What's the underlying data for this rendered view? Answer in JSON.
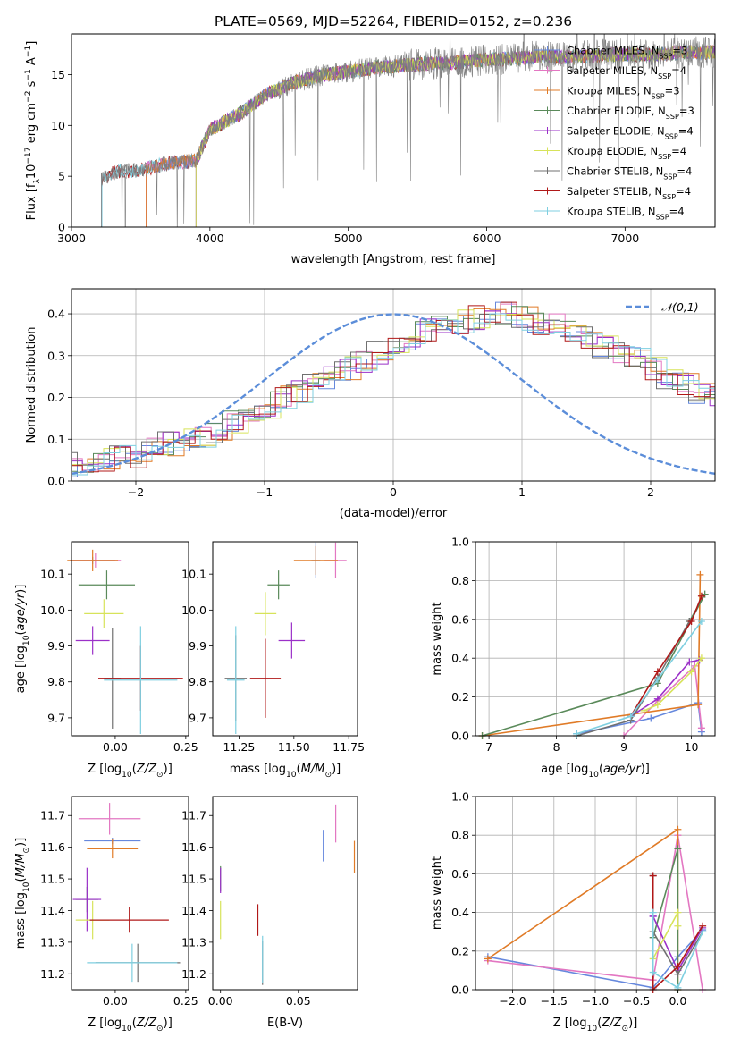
{
  "figure": {
    "title": "PLATE=0569, MJD=52264, FIBERID=0152, z=0.236"
  },
  "colors": {
    "chabrier_miles": "#6688dd",
    "salpeter_miles": "#e377c2",
    "kroupa_miles": "#e07b27",
    "chabrier_elodie": "#5a8a5a",
    "salpeter_elodie": "#9b30c8",
    "kroupa_elodie": "#d7e35a",
    "chabrier_stelib": "#707070",
    "salpeter_stelib": "#b01818",
    "kroupa_stelib": "#7fcfe0",
    "normal": "#5b8dd9"
  },
  "chart_data": [
    {
      "id": "spectrum",
      "type": "line",
      "xlabel": "wavelength [Angstrom, rest frame]",
      "ylabel": "Flux [f",
      "xlim": [
        3000,
        7650
      ],
      "ylim": [
        0,
        19
      ],
      "xticks": [
        3000,
        4000,
        5000,
        6000,
        7000
      ],
      "yticks": [
        0,
        5,
        10,
        15
      ],
      "legend_position": "upper-right",
      "series": [
        {
          "name": "Chabrier MILES, N_SSP=3",
          "start": 3540
        },
        {
          "name": "Salpeter MILES, N_SSP=4",
          "start": 3540
        },
        {
          "name": "Kroupa MILES, N_SSP=3",
          "start": 3540
        },
        {
          "name": "Chabrier ELODIE, N_SSP=3",
          "start": 3900
        },
        {
          "name": "Salpeter ELODIE, N_SSP=4",
          "start": 3900
        },
        {
          "name": "Kroupa ELODIE, N_SSP=4",
          "start": 3900
        },
        {
          "name": "Chabrier STELIB, N_SSP=4",
          "start": 3220
        },
        {
          "name": "Salpeter STELIB, N_SSP=4",
          "start": 3220
        },
        {
          "name": "Kroupa STELIB, N_SSP=4",
          "start": 3220
        }
      ],
      "continuum": {
        "x": [
          3200,
          3300,
          3500,
          3700,
          3900,
          4000,
          4200,
          4400,
          4600,
          4800,
          5000,
          5200,
          5400,
          5600,
          5800,
          6000,
          6200,
          6400,
          6600,
          6800,
          7000,
          7200,
          7400
        ],
        "y": [
          4.5,
          5.4,
          5.6,
          6.3,
          6.5,
          9.6,
          11.0,
          13.0,
          14.2,
          14.9,
          15.3,
          15.7,
          15.9,
          16.1,
          16.2,
          16.5,
          16.6,
          16.8,
          16.7,
          16.9,
          17.0,
          16.9,
          17.2
        ]
      }
    },
    {
      "id": "residuals",
      "type": "histogram",
      "xlabel": "(data-model)/error",
      "ylabel": "Normed distribution",
      "xlim": [
        -2.5,
        2.5
      ],
      "ylim": [
        0,
        0.46
      ],
      "xticks": [
        -2,
        -1,
        0,
        1,
        2
      ],
      "yticks": [
        0.0,
        0.1,
        0.2,
        0.3,
        0.4
      ],
      "legend": [
        "𝒩(0,1)"
      ],
      "bin_width": 0.125,
      "approx_values": [
        0.04,
        0.045,
        0.05,
        0.055,
        0.06,
        0.075,
        0.09,
        0.1,
        0.11,
        0.12,
        0.14,
        0.16,
        0.18,
        0.2,
        0.21,
        0.23,
        0.25,
        0.27,
        0.29,
        0.31,
        0.32,
        0.34,
        0.36,
        0.37,
        0.38,
        0.39,
        0.4,
        0.4,
        0.39,
        0.38,
        0.37,
        0.36,
        0.34,
        0.32,
        0.31,
        0.29,
        0.27,
        0.25,
        0.23,
        0.21,
        0.2,
        0.18,
        0.16,
        0.14,
        0.12,
        0.11,
        0.1,
        0.09,
        0.075,
        0.06,
        0.06,
        0.055,
        0.05,
        0.045,
        0.04,
        0.035,
        0.03,
        0.03
      ]
    },
    {
      "id": "age_vs_Z",
      "type": "scatter",
      "xlabel": "Z [log",
      "ylabel": "age  [log",
      "xlim": [
        -0.155,
        0.26
      ],
      "ylim": [
        9.65,
        10.19
      ],
      "xticks": [
        0.0,
        0.25
      ],
      "yticks": [
        9.7,
        9.8,
        9.9,
        10.0,
        10.1
      ],
      "points": [
        {
          "series": 0,
          "x": -0.08,
          "y": 10.138,
          "xerr": 0.08,
          "yerr": 0.01
        },
        {
          "series": 1,
          "x": -0.07,
          "y": 10.138,
          "xerr": 0.09,
          "yerr": 0.02
        },
        {
          "series": 2,
          "x": -0.08,
          "y": 10.138,
          "xerr": 0.09,
          "yerr": 0.03
        },
        {
          "series": 3,
          "x": -0.03,
          "y": 10.07,
          "xerr": 0.1,
          "yerr": 0.04
        },
        {
          "series": 4,
          "x": -0.08,
          "y": 9.915,
          "xerr": 0.06,
          "yerr": 0.04
        },
        {
          "series": 5,
          "x": -0.04,
          "y": 9.99,
          "xerr": 0.07,
          "yerr": 0.04
        },
        {
          "series": 6,
          "x": -0.01,
          "y": 9.81,
          "xerr": 0.03,
          "yerr": 0.14
        },
        {
          "series": 7,
          "x": 0.09,
          "y": 9.81,
          "xerr": 0.15,
          "yerr": 0.09
        },
        {
          "series": 8,
          "x": 0.09,
          "y": 9.805,
          "xerr": 0.13,
          "yerr": 0.15
        }
      ]
    },
    {
      "id": "age_vs_mass",
      "type": "scatter",
      "xlabel": "mass [log",
      "xlim": [
        11.13,
        11.79
      ],
      "ylim": [
        9.65,
        10.19
      ],
      "xticks": [
        11.25,
        11.5,
        11.75
      ],
      "yticks": [
        9.7,
        9.8,
        9.9,
        10.0,
        10.1
      ],
      "points": [
        {
          "series": 0,
          "x": 11.6,
          "y": 10.138,
          "xerr": 0.02,
          "yerr": 0.05
        },
        {
          "series": 1,
          "x": 11.69,
          "y": 10.138,
          "xerr": 0.05,
          "yerr": 0.05
        },
        {
          "series": 2,
          "x": 11.6,
          "y": 10.138,
          "xerr": 0.1,
          "yerr": 0.04
        },
        {
          "series": 3,
          "x": 11.43,
          "y": 10.07,
          "xerr": 0.05,
          "yerr": 0.04
        },
        {
          "series": 4,
          "x": 11.49,
          "y": 9.915,
          "xerr": 0.06,
          "yerr": 0.05
        },
        {
          "series": 5,
          "x": 11.37,
          "y": 9.99,
          "xerr": 0.05,
          "yerr": 0.06
        },
        {
          "series": 6,
          "x": 11.235,
          "y": 9.81,
          "xerr": 0.05,
          "yerr": 0.12
        },
        {
          "series": 7,
          "x": 11.37,
          "y": 9.81,
          "xerr": 0.07,
          "yerr": 0.11
        },
        {
          "series": 8,
          "x": 11.235,
          "y": 9.805,
          "xerr": 0.04,
          "yerr": 0.15
        }
      ]
    },
    {
      "id": "weight_vs_age",
      "type": "line",
      "xlabel": "age  [log",
      "ylabel": "mass weight",
      "xlim": [
        6.8,
        10.35
      ],
      "ylim": [
        0,
        1.0
      ],
      "xticks": [
        7,
        8,
        9,
        10
      ],
      "yticks": [
        0.0,
        0.2,
        0.4,
        0.6,
        0.8,
        1.0
      ],
      "series": [
        {
          "series": 0,
          "x": [
            8.3,
            9.4,
            10.1,
            10.15
          ],
          "y": [
            0.01,
            0.09,
            0.17,
            0.02
          ]
        },
        {
          "series": 1,
          "x": [
            9.0,
            9.5,
            10.05,
            10.15
          ],
          "y": [
            0.0,
            0.18,
            0.36,
            0.04
          ]
        },
        {
          "series": 2,
          "x": [
            6.9,
            10.1,
            10.13
          ],
          "y": [
            0.0,
            0.16,
            0.83
          ]
        },
        {
          "series": 3,
          "x": [
            6.9,
            9.5,
            10.2,
            9.97
          ],
          "y": [
            0.0,
            0.27,
            0.73,
            0.59
          ]
        },
        {
          "series": 4,
          "x": [
            9.1,
            9.5,
            9.97,
            10.12
          ],
          "y": [
            0.1,
            0.19,
            0.38,
            0.39
          ]
        },
        {
          "series": 5,
          "x": [
            9.3,
            9.5,
            10.0,
            10.15
          ],
          "y": [
            0.13,
            0.16,
            0.33,
            0.4
          ]
        },
        {
          "series": 6,
          "x": [
            8.3,
            9.1,
            9.5,
            9.97
          ],
          "y": [
            0.0,
            0.08,
            0.3,
            0.59
          ]
        },
        {
          "series": 7,
          "x": [
            9.1,
            9.5,
            10.0,
            10.15
          ],
          "y": [
            0.1,
            0.33,
            0.59,
            0.72
          ]
        },
        {
          "series": 8,
          "x": [
            8.3,
            9.1,
            9.5,
            10.15
          ],
          "y": [
            0.01,
            0.1,
            0.29,
            0.59
          ]
        }
      ]
    },
    {
      "id": "mass_vs_Z",
      "type": "scatter",
      "xlabel": "Z [log",
      "ylabel": "mass [log",
      "xlim": [
        -0.155,
        0.26
      ],
      "ylim": [
        11.15,
        11.76
      ],
      "xticks": [
        0.0,
        0.25
      ],
      "yticks": [
        11.2,
        11.3,
        11.4,
        11.5,
        11.6,
        11.7
      ],
      "points": [
        {
          "series": 0,
          "x": -0.01,
          "y": 11.62,
          "xerr": 0.1,
          "yerr": 0.01
        },
        {
          "series": 1,
          "x": -0.02,
          "y": 11.69,
          "xerr": 0.11,
          "yerr": 0.05
        },
        {
          "series": 2,
          "x": -0.01,
          "y": 11.595,
          "xerr": 0.09,
          "yerr": 0.03
        },
        {
          "series": 3,
          "x": -0.1,
          "y": 11.435,
          "xerr": 0.04,
          "yerr": 0.04
        },
        {
          "series": 4,
          "x": -0.1,
          "y": 11.435,
          "xerr": 0.05,
          "yerr": 0.1
        },
        {
          "series": 5,
          "x": -0.08,
          "y": 11.37,
          "xerr": 0.06,
          "yerr": 0.06
        },
        {
          "series": 6,
          "x": 0.08,
          "y": 11.235,
          "xerr": 0.15,
          "yerr": 0.06
        },
        {
          "series": 7,
          "x": 0.05,
          "y": 11.37,
          "xerr": 0.14,
          "yerr": 0.04
        },
        {
          "series": 8,
          "x": 0.06,
          "y": 11.235,
          "xerr": 0.16,
          "yerr": 0.06
        }
      ]
    },
    {
      "id": "mass_vs_ebv",
      "type": "scatter",
      "xlabel": "E(B-V)",
      "xlim": [
        -0.005,
        0.088
      ],
      "ylim": [
        11.15,
        11.76
      ],
      "xticks": [
        0.0,
        0.05
      ],
      "yticks": [
        11.2,
        11.3,
        11.4,
        11.5,
        11.6,
        11.7
      ],
      "points": [
        {
          "series": 0,
          "x": 0.066,
          "y": 11.605,
          "yerr": 0.05
        },
        {
          "series": 1,
          "x": 0.074,
          "y": 11.675,
          "yerr": 0.06
        },
        {
          "series": 2,
          "x": 0.086,
          "y": 11.57,
          "yerr": 0.05
        },
        {
          "series": 3,
          "x": 0.0,
          "y": 11.5,
          "yerr": 0.04
        },
        {
          "series": 4,
          "x": 0.0,
          "y": 11.495,
          "yerr": 0.04
        },
        {
          "series": 5,
          "x": 0.0,
          "y": 11.37,
          "yerr": 0.06
        },
        {
          "series": 6,
          "x": 0.027,
          "y": 11.235,
          "yerr": 0.07
        },
        {
          "series": 7,
          "x": 0.024,
          "y": 11.37,
          "yerr": 0.05
        },
        {
          "series": 8,
          "x": 0.027,
          "y": 11.245,
          "yerr": 0.075
        }
      ]
    },
    {
      "id": "weight_vs_Z",
      "type": "line",
      "xlabel": "Z [log",
      "ylabel": "mass weight",
      "xlim": [
        -2.45,
        0.45
      ],
      "ylim": [
        0,
        1.0
      ],
      "xticks": [
        -2.0,
        -1.5,
        -1.0,
        -0.5,
        0.0
      ],
      "yticks": [
        0.0,
        0.2,
        0.4,
        0.6,
        0.8,
        1.0
      ],
      "series": [
        {
          "series": 0,
          "x": [
            -2.3,
            -0.3,
            0.0,
            0.3
          ],
          "y": [
            0.17,
            0.01,
            0.17,
            0.31
          ]
        },
        {
          "series": 1,
          "x": [
            -2.3,
            -0.3,
            0.0,
            0.3
          ],
          "y": [
            0.15,
            0.05,
            0.8,
            0.0
          ]
        },
        {
          "series": 2,
          "x": [
            -2.3,
            0.0,
            0.0
          ],
          "y": [
            0.16,
            0.83,
            0.0
          ]
        },
        {
          "series": 3,
          "x": [
            -0.3,
            0.0,
            0.0
          ],
          "y": [
            0.27,
            0.73,
            0.0
          ]
        },
        {
          "series": 4,
          "x": [
            -0.3,
            -0.3,
            0.0,
            0.3
          ],
          "y": [
            0.38,
            0.38,
            0.1,
            0.32
          ]
        },
        {
          "series": 5,
          "x": [
            -0.3,
            0.0,
            0.0
          ],
          "y": [
            0.16,
            0.4,
            0.33
          ]
        },
        {
          "series": 6,
          "x": [
            -0.3,
            -0.3,
            0.0,
            0.3
          ],
          "y": [
            0.59,
            0.3,
            0.08,
            0.3
          ]
        },
        {
          "series": 7,
          "x": [
            -0.3,
            -0.3,
            0.0,
            0.3
          ],
          "y": [
            0.59,
            0.0,
            0.12,
            0.33
          ]
        },
        {
          "series": 8,
          "x": [
            -0.3,
            -0.3,
            0.0,
            0.3
          ],
          "y": [
            0.4,
            0.09,
            0.01,
            0.3
          ]
        }
      ]
    }
  ]
}
